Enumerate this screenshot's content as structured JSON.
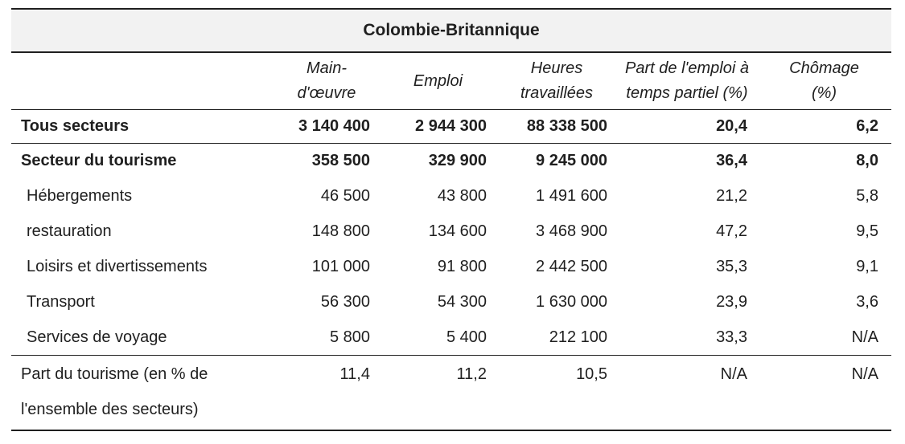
{
  "table": {
    "title": "Colombie-Britannique",
    "column_headers": [
      "",
      "Main-\nd'œuvre",
      "Emploi",
      "Heures\ntravaillées",
      "Part de l'emploi à\ntemps partiel (%)",
      "Chômage\n(%)"
    ],
    "rows": [
      {
        "label": "Tous secteurs",
        "values": [
          "3 140 400",
          "2 944 300",
          "88 338 500",
          "20,4",
          "6,2"
        ]
      },
      {
        "label": "Secteur du tourisme",
        "values": [
          "358 500",
          "329 900",
          "9 245 000",
          "36,4",
          "8,0"
        ]
      },
      {
        "label": "Hébergements",
        "values": [
          "46 500",
          "43 800",
          "1 491 600",
          "21,2",
          "5,8"
        ]
      },
      {
        "label": "restauration",
        "values": [
          "148 800",
          "134 600",
          "3 468 900",
          "47,2",
          "9,5"
        ]
      },
      {
        "label": "Loisirs et divertissements",
        "values": [
          "101 000",
          "91 800",
          "2 442 500",
          "35,3",
          "9,1"
        ]
      },
      {
        "label": "Transport",
        "values": [
          "56 300",
          "54 300",
          "1 630 000",
          "23,9",
          "3,6"
        ]
      },
      {
        "label": "Services de voyage",
        "values": [
          "5 800",
          "5 400",
          "212 100",
          "33,3",
          "N/A"
        ]
      },
      {
        "label": "Part du tourisme (en % de\nl'ensemble des secteurs)",
        "values": [
          "11,4",
          "11,2",
          "10,5",
          "N/A",
          "N/A"
        ]
      }
    ]
  },
  "chart_data": {
    "type": "table",
    "title": "Colombie-Britannique",
    "columns": [
      "Main-d'œuvre",
      "Emploi",
      "Heures travaillées",
      "Part de l'emploi à temps partiel (%)",
      "Chômage (%)"
    ],
    "rows": [
      {
        "label": "Tous secteurs",
        "values": [
          3140400,
          2944300,
          88338500,
          20.4,
          6.2
        ]
      },
      {
        "label": "Secteur du tourisme",
        "values": [
          358500,
          329900,
          9245000,
          36.4,
          8.0
        ]
      },
      {
        "label": "Hébergements",
        "values": [
          46500,
          43800,
          1491600,
          21.2,
          5.8
        ]
      },
      {
        "label": "restauration",
        "values": [
          148800,
          134600,
          3468900,
          47.2,
          9.5
        ]
      },
      {
        "label": "Loisirs et divertissements",
        "values": [
          101000,
          91800,
          2442500,
          35.3,
          9.1
        ]
      },
      {
        "label": "Transport",
        "values": [
          56300,
          54300,
          1630000,
          23.9,
          3.6
        ]
      },
      {
        "label": "Services de voyage",
        "values": [
          5800,
          5400,
          212100,
          33.3,
          null
        ]
      },
      {
        "label": "Part du tourisme (en % de l'ensemble des secteurs)",
        "values": [
          11.4,
          11.2,
          10.5,
          null,
          null
        ]
      }
    ],
    "na_display": "N/A"
  },
  "colors": {
    "title_band_bg": "#f2f2f2",
    "rule": "#1f1f1f",
    "text": "#1f1f1f"
  }
}
